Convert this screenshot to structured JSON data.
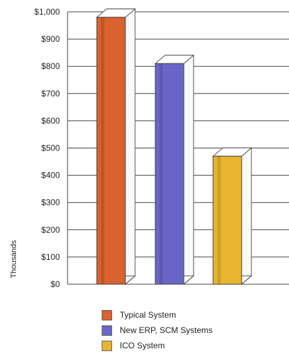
{
  "chart_data": {
    "type": "bar",
    "categories": [
      "Typical System",
      "New ERP, SCM Systems",
      "ICO System"
    ],
    "values": [
      980,
      810,
      470
    ],
    "ylabel": "Thousands",
    "ylim": [
      0,
      1000
    ],
    "yticks": [
      {
        "value": 0,
        "label": "$0"
      },
      {
        "value": 100,
        "label": "$100"
      },
      {
        "value": 200,
        "label": "$200"
      },
      {
        "value": 300,
        "label": "$300"
      },
      {
        "value": 400,
        "label": "$400"
      },
      {
        "value": 500,
        "label": "$500"
      },
      {
        "value": 600,
        "label": "$600"
      },
      {
        "value": 700,
        "label": "$700"
      },
      {
        "value": 800,
        "label": "$800"
      },
      {
        "value": 900,
        "label": "$900"
      },
      {
        "value": 1000,
        "label": "$1,000"
      }
    ],
    "colors": [
      "#d9622e",
      "#6a66c8",
      "#e9b52e"
    ],
    "grid": true,
    "legend_placement": "bottom"
  }
}
